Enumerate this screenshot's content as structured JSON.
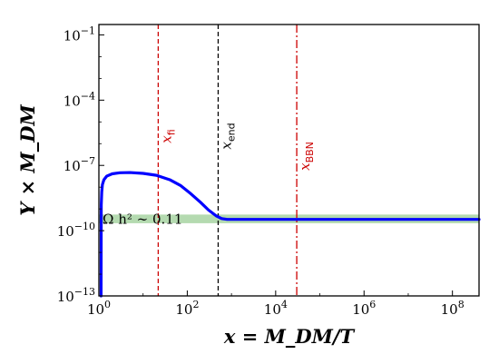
{
  "chart_data": {
    "type": "line",
    "xlabel": "x = M_DM/T",
    "ylabel": "Y × M_DM",
    "x_scale": "log",
    "y_scale": "log",
    "xlim": [
      1,
      400000000.0
    ],
    "ylim": [
      1e-13,
      0.3
    ],
    "x_ticks": [
      {
        "value": 1,
        "label": "10^0"
      },
      {
        "value": 100,
        "label": "10^2"
      },
      {
        "value": 10000,
        "label": "10^4"
      },
      {
        "value": 1000000,
        "label": "10^6"
      },
      {
        "value": 100000000,
        "label": "10^8"
      }
    ],
    "y_ticks": [
      {
        "value": 1e-13,
        "label": "10^-13"
      },
      {
        "value": 1e-10,
        "label": "10^-10"
      },
      {
        "value": 1e-07,
        "label": "10^-7"
      },
      {
        "value": 0.0001,
        "label": "10^-4"
      },
      {
        "value": 0.1,
        "label": "10^-1"
      }
    ],
    "series": [
      {
        "color": "#0000ff",
        "x": [
          1.12,
          1.13,
          1.16,
          1.2,
          1.3,
          1.5,
          2,
          3,
          5,
          10,
          20,
          40,
          70,
          120,
          200,
          300,
          450,
          600,
          800,
          1000,
          10000,
          100000,
          1000000,
          10000000,
          100000000,
          400000000
        ],
        "y": [
          1e-13,
          1.5e-09,
          6e-09,
          1.3e-08,
          2.2e-08,
          3.2e-08,
          4.1e-08,
          4.6e-08,
          4.7e-08,
          4.3e-08,
          3.5e-08,
          2.2e-08,
          1.2e-08,
          5e-09,
          2e-09,
          9e-10,
          4.8e-10,
          3.6e-10,
          3.3e-10,
          3.3e-10,
          3.3e-10,
          3.3e-10,
          3.3e-10,
          3.3e-10,
          3.3e-10,
          3.3e-10
        ]
      }
    ],
    "band": {
      "label": "Ω h² ∼ 0.11",
      "y_range": [
        2.2e-10,
        5.5e-10
      ],
      "color": "#a7d3a2"
    },
    "vlines": [
      {
        "name": "x_fi",
        "label_main": "x",
        "label_sub": "fi",
        "x": 22,
        "color": "#cc0000",
        "style": "dashed"
      },
      {
        "name": "x_end",
        "label_main": "x",
        "label_sub": "end",
        "x": 500,
        "color": "#000000",
        "style": "dashed"
      },
      {
        "name": "x_BBN",
        "label_main": "x",
        "label_sub": "BBN",
        "x": 30000,
        "color": "#cc0000",
        "style": "dashdot"
      }
    ],
    "grid": false,
    "legend": "none"
  }
}
